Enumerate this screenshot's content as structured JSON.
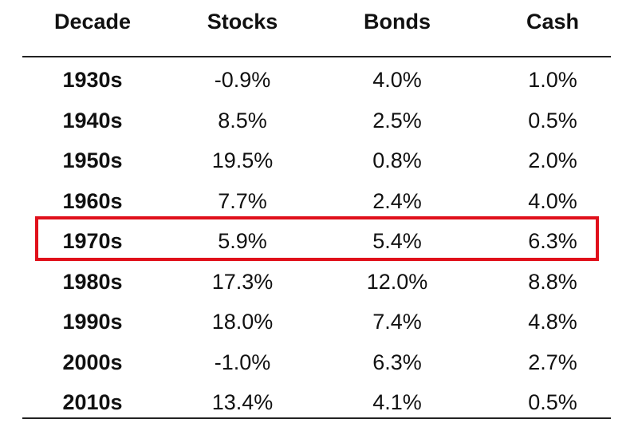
{
  "chart_data": {
    "type": "table",
    "columns": [
      "Decade",
      "Stocks",
      "Bonds",
      "Cash"
    ],
    "rows": [
      [
        "1930s",
        "-0.9%",
        "4.0%",
        "1.0%"
      ],
      [
        "1940s",
        "8.5%",
        "2.5%",
        "0.5%"
      ],
      [
        "1950s",
        "19.5%",
        "0.8%",
        "2.0%"
      ],
      [
        "1960s",
        "7.7%",
        "2.4%",
        "4.0%"
      ],
      [
        "1970s",
        "5.9%",
        "5.4%",
        "6.3%"
      ],
      [
        "1980s",
        "17.3%",
        "12.0%",
        "8.8%"
      ],
      [
        "1990s",
        "18.0%",
        "7.4%",
        "4.8%"
      ],
      [
        "2000s",
        "-1.0%",
        "6.3%",
        "2.7%"
      ],
      [
        "2010s",
        "13.4%",
        "4.1%",
        "0.5%"
      ]
    ],
    "highlighted_row": "1970s",
    "highlight_color": "#e0101b"
  }
}
